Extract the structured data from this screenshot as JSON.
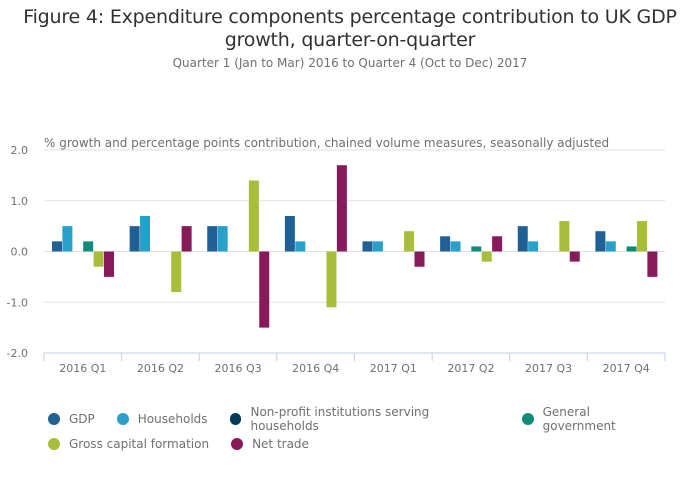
{
  "chart_data": {
    "type": "bar",
    "title": "Figure 4: Expenditure components percentage contribution to UK GDP growth, quarter-on-quarter",
    "subtitle": "Quarter 1 (Jan to Mar) 2016 to Quarter 4 (Oct to Dec) 2017",
    "ylabel": "% growth and percentage points contribution, chained volume measures, seasonally adjusted",
    "xlabel": "",
    "ylim": [
      -2.0,
      2.0
    ],
    "yticks": [
      2.0,
      1.0,
      0.0,
      -1.0,
      -2.0
    ],
    "ytick_labels": [
      "2.0",
      "1.0",
      "0.0",
      "-1.0",
      "-2.0"
    ],
    "grid": true,
    "legend_position": "bottom",
    "categories": [
      "2016 Q1",
      "2016 Q2",
      "2016 Q3",
      "2016 Q4",
      "2017 Q1",
      "2017 Q2",
      "2017 Q3",
      "2017 Q4"
    ],
    "series": [
      {
        "name": "GDP",
        "color": "#206095",
        "values": [
          0.2,
          0.5,
          0.5,
          0.7,
          0.2,
          0.3,
          0.5,
          0.4
        ]
      },
      {
        "name": "Households",
        "color": "#27A0CC",
        "values": [
          0.5,
          0.7,
          0.5,
          0.2,
          0.2,
          0.2,
          0.2,
          0.2
        ]
      },
      {
        "name": "Non-profit institutions serving households",
        "color": "#003C57",
        "values": [
          0.0,
          0.0,
          0.0,
          0.0,
          0.0,
          0.0,
          0.0,
          0.0
        ]
      },
      {
        "name": "General government",
        "color": "#118C7B",
        "values": [
          0.2,
          0.0,
          0.0,
          0.0,
          0.0,
          0.1,
          0.0,
          0.1
        ]
      },
      {
        "name": "Gross capital formation",
        "color": "#A8BD3A",
        "values": [
          -0.3,
          -0.8,
          1.4,
          -1.1,
          0.4,
          -0.2,
          0.6,
          0.6
        ]
      },
      {
        "name": "Net trade",
        "color": "#871A5B",
        "values": [
          -0.5,
          0.5,
          -1.5,
          1.7,
          -0.3,
          0.3,
          -0.2,
          -0.5
        ]
      }
    ]
  }
}
